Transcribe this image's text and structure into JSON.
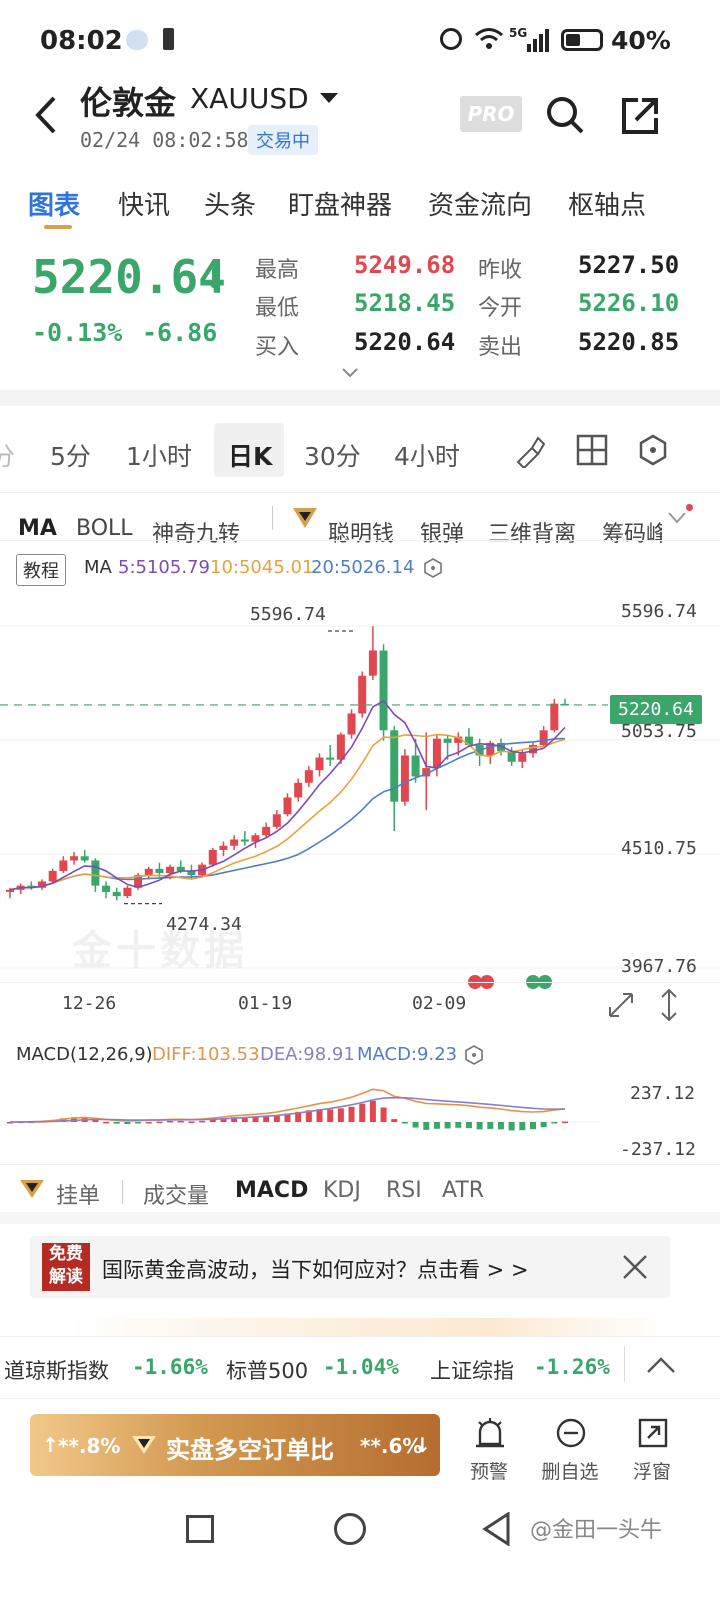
{
  "status_bar": {
    "time": "08:02",
    "battery": "40%",
    "network": "5G"
  },
  "header": {
    "name": "伦敦金",
    "symbol": "XAUUSD",
    "datetime": "02/24 08:02:58",
    "status": "交易中",
    "pro": "PRO"
  },
  "tabs": [
    "图表",
    "快讯",
    "头条",
    "盯盘神器",
    "资金流向",
    "枢轴点"
  ],
  "quote": {
    "price": "5220.64",
    "change_pct": "-0.13%",
    "change": "-6.86",
    "high_label": "最高",
    "high": "5249.68",
    "low_label": "最低",
    "low": "5218.45",
    "bid_label": "买入",
    "bid": "5220.64",
    "prev_close_label": "昨收",
    "prev_close": "5227.50",
    "open_label": "今开",
    "open": "5226.10",
    "ask_label": "卖出",
    "ask": "5220.85"
  },
  "periods": [
    "分",
    "5分",
    "1小时",
    "日K",
    "30分",
    "4小时"
  ],
  "indicators": [
    "MA",
    "BOLL",
    "神奇九转",
    "聪明钱",
    "银弹",
    "三维背离",
    "筹码峰"
  ],
  "ma_legend": {
    "tutorial": "教程",
    "ma": "MA",
    "ma5": "5:5105.79",
    "ma10": "10:5045.01",
    "ma20": "20:5026.14"
  },
  "chart_data": {
    "type": "candlestick",
    "y_ticks": [
      "5596.74",
      "5053.75",
      "4510.75",
      "3967.76"
    ],
    "x_ticks": [
      "12-26",
      "01-19",
      "02-09"
    ],
    "max_label": "5596.74",
    "min_label": "4274.34",
    "last_price": "5220.64",
    "ylim": [
      3967.76,
      5596.74
    ],
    "candles": [
      [
        4330,
        4350,
        4300,
        4340
      ],
      [
        4340,
        4370,
        4320,
        4360
      ],
      [
        4360,
        4380,
        4340,
        4350
      ],
      [
        4350,
        4390,
        4340,
        4380
      ],
      [
        4380,
        4440,
        4370,
        4430
      ],
      [
        4430,
        4500,
        4420,
        4480
      ],
      [
        4480,
        4520,
        4460,
        4500
      ],
      [
        4500,
        4530,
        4470,
        4480
      ],
      [
        4480,
        4490,
        4330,
        4360
      ],
      [
        4360,
        4380,
        4300,
        4330
      ],
      [
        4330,
        4350,
        4290,
        4310
      ],
      [
        4310,
        4360,
        4300,
        4350
      ],
      [
        4350,
        4420,
        4340,
        4410
      ],
      [
        4410,
        4450,
        4390,
        4440
      ],
      [
        4440,
        4470,
        4400,
        4420
      ],
      [
        4420,
        4460,
        4390,
        4450
      ],
      [
        4450,
        4480,
        4420,
        4430
      ],
      [
        4430,
        4460,
        4390,
        4410
      ],
      [
        4410,
        4470,
        4400,
        4460
      ],
      [
        4460,
        4540,
        4450,
        4530
      ],
      [
        4530,
        4570,
        4500,
        4550
      ],
      [
        4550,
        4600,
        4530,
        4580
      ],
      [
        4580,
        4620,
        4550,
        4570
      ],
      [
        4570,
        4610,
        4540,
        4600
      ],
      [
        4600,
        4660,
        4590,
        4640
      ],
      [
        4640,
        4720,
        4630,
        4700
      ],
      [
        4700,
        4800,
        4690,
        4780
      ],
      [
        4780,
        4870,
        4760,
        4850
      ],
      [
        4850,
        4930,
        4830,
        4910
      ],
      [
        4910,
        4990,
        4880,
        4970
      ],
      [
        4970,
        5030,
        4930,
        4960
      ],
      [
        4960,
        5090,
        4940,
        5080
      ],
      [
        5080,
        5200,
        5060,
        5180
      ],
      [
        5180,
        5380,
        5160,
        5360
      ],
      [
        5360,
        5596,
        5340,
        5480
      ],
      [
        5480,
        5510,
        5050,
        5100
      ],
      [
        5100,
        5120,
        4620,
        4760
      ],
      [
        4760,
        5010,
        4740,
        4980
      ],
      [
        4980,
        5060,
        4850,
        4880
      ],
      [
        4880,
        5090,
        4720,
        4920
      ],
      [
        4920,
        5080,
        4880,
        5060
      ],
      [
        5060,
        5080,
        4960,
        5040
      ],
      [
        5040,
        5090,
        4980,
        5070
      ],
      [
        5070,
        5110,
        5020,
        5030
      ],
      [
        5030,
        5060,
        4930,
        4980
      ],
      [
        4980,
        5050,
        4940,
        5040
      ],
      [
        5040,
        5060,
        4980,
        5000
      ],
      [
        5000,
        5020,
        4930,
        4950
      ],
      [
        4950,
        5010,
        4920,
        4990
      ],
      [
        4990,
        5040,
        4970,
        5030
      ],
      [
        5030,
        5120,
        5020,
        5100
      ],
      [
        5100,
        5249,
        5090,
        5227
      ],
      [
        5226,
        5250,
        5218,
        5220
      ]
    ]
  },
  "macd": {
    "label": "MACD(12,26,9)",
    "diff": "DIFF:103.53",
    "dea": "DEA:98.91",
    "macd": "MACD:9.23",
    "top": "237.12",
    "bottom": "-237.12"
  },
  "bottom_tabs": [
    "挂单",
    "成交量",
    "MACD",
    "KDJ",
    "RSI",
    "ATR"
  ],
  "banner": {
    "badge_line1": "免费",
    "badge_line2": "解读",
    "text": "国际黄金高波动，当下如何应对？点击看 > >"
  },
  "tickers": [
    {
      "name": "道琼斯指数",
      "value": "-1.66%"
    },
    {
      "name": "标普500",
      "value": "-1.04%"
    },
    {
      "name": "上证综指",
      "value": "-1.26%"
    }
  ],
  "actions": {
    "left_pct": "**.8%",
    "main": "实盘多空订单比",
    "right_pct": "**.6%",
    "alert": "预警",
    "remove": "删自选",
    "float": "浮窗"
  },
  "watermark": "金十数据",
  "signature": "@金田一头牛",
  "colors": {
    "up": "#e0474f",
    "down": "#3aa66a",
    "accent": "#2f74d8",
    "gold": "#d4a04a"
  }
}
